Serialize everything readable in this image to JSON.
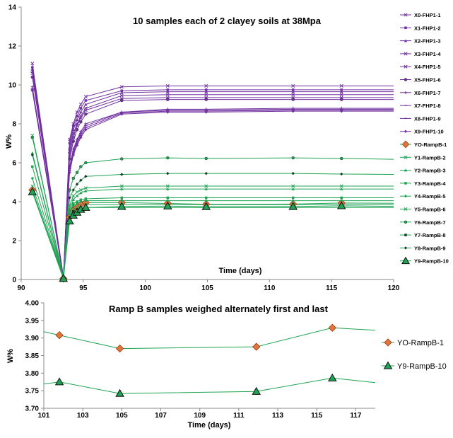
{
  "colors": {
    "purple": "#7030a0",
    "green": "#1fa354",
    "orange": "#e2753b",
    "axis": "#888888"
  },
  "chart_data": [
    {
      "type": "line",
      "title": "10 samples each of 2 clayey soils at 38Mpa",
      "xlabel": "Time (days)",
      "ylabel": "W%",
      "xlim": [
        90,
        120
      ],
      "ylim": [
        0,
        14
      ],
      "xticks": [
        90,
        95,
        100,
        105,
        110,
        115,
        120
      ],
      "yticks": [
        0,
        2,
        4,
        6,
        8,
        10,
        12,
        14
      ],
      "legend_position": "right",
      "x": [
        90.9,
        93.4,
        93.9,
        94.2,
        94.5,
        94.8,
        95.2,
        98.1,
        101.8,
        104.9,
        111.9,
        115.8,
        120
      ],
      "series": [
        {
          "name": "X0-FHP1-1",
          "marker": "x",
          "color": "#7030a0",
          "values": [
            11.1,
            0.1,
            7.2,
            8.0,
            8.6,
            9.0,
            9.4,
            9.9,
            9.95,
            9.95,
            9.95,
            9.95,
            9.95
          ]
        },
        {
          "name": "X1-FHP1-2",
          "marker": "square",
          "color": "#7030a0",
          "values": [
            10.9,
            0.1,
            7.0,
            7.9,
            8.4,
            8.8,
            9.2,
            9.7,
            9.75,
            9.75,
            9.75,
            9.75,
            9.75
          ]
        },
        {
          "name": "X2-FHP1-3",
          "marker": "triangle",
          "color": "#7030a0",
          "values": [
            10.8,
            0.1,
            6.8,
            7.7,
            8.2,
            8.6,
            9.0,
            9.6,
            9.65,
            9.65,
            9.65,
            9.65,
            9.65
          ]
        },
        {
          "name": "X3-FHP1-4",
          "marker": "x",
          "color": "#7030a0",
          "values": [
            10.7,
            0.1,
            6.6,
            7.5,
            8.0,
            8.4,
            8.8,
            9.45,
            9.5,
            9.5,
            9.5,
            9.5,
            9.5
          ]
        },
        {
          "name": "X4-FHP1-5",
          "marker": "x",
          "color": "#7030a0",
          "values": [
            10.6,
            0.1,
            6.4,
            7.3,
            7.9,
            8.3,
            8.7,
            9.3,
            9.35,
            9.35,
            9.35,
            9.35,
            9.35
          ]
        },
        {
          "name": "X5-FHP1-6",
          "marker": "circle",
          "color": "#7030a0",
          "values": [
            10.4,
            0.1,
            6.2,
            7.1,
            7.7,
            8.1,
            8.5,
            9.2,
            9.25,
            9.25,
            9.25,
            9.25,
            9.25
          ]
        },
        {
          "name": "X6-FHP1-7",
          "marker": "plus",
          "color": "#7030a0",
          "values": [
            9.9,
            0.1,
            5.8,
            6.7,
            7.2,
            7.6,
            8.0,
            8.6,
            8.75,
            8.75,
            8.8,
            8.8,
            8.8
          ]
        },
        {
          "name": "X7-FHP1-8",
          "marker": "dash",
          "color": "#7030a0",
          "values": [
            9.8,
            0.1,
            5.7,
            6.6,
            7.1,
            7.5,
            7.9,
            8.6,
            8.7,
            8.7,
            8.75,
            8.75,
            8.75
          ]
        },
        {
          "name": "X8-FHP1-9",
          "marker": "dash",
          "color": "#7030a0",
          "values": [
            9.75,
            0.1,
            5.6,
            6.5,
            7.0,
            7.4,
            7.8,
            8.55,
            8.65,
            8.65,
            8.7,
            8.7,
            8.7
          ]
        },
        {
          "name": "X9-FHP1-10",
          "marker": "diamond",
          "color": "#7030a0",
          "values": [
            9.7,
            0.1,
            5.5,
            6.4,
            6.9,
            7.3,
            7.7,
            8.5,
            8.6,
            8.6,
            8.65,
            8.65,
            8.65
          ]
        },
        {
          "name": "YO-RampB-1",
          "marker": "diamond-orange",
          "color": "#1fa354",
          "values": [
            4.6,
            0.05,
            3.2,
            3.55,
            3.7,
            3.85,
            3.95,
            3.95,
            3.91,
            3.87,
            3.875,
            3.93,
            3.92
          ]
        },
        {
          "name": "Y1-RampB-2",
          "marker": "x",
          "color": "#1fa354",
          "values": [
            7.4,
            0.1,
            3.8,
            4.3,
            4.5,
            4.6,
            4.7,
            4.8,
            4.8,
            4.8,
            4.8,
            4.8,
            4.8
          ]
        },
        {
          "name": "Y2-RampB-3",
          "marker": "triangle",
          "color": "#1fa354",
          "values": [
            6.5,
            0.1,
            3.6,
            4.1,
            4.3,
            4.45,
            4.55,
            4.65,
            4.65,
            4.65,
            4.65,
            4.65,
            4.65
          ]
        },
        {
          "name": "Y3-RampB-4",
          "marker": "square",
          "color": "#1fa354",
          "values": [
            5.8,
            0.1,
            3.5,
            3.9,
            4.0,
            4.1,
            4.15,
            4.2,
            4.2,
            4.2,
            4.2,
            4.2,
            4.2
          ]
        },
        {
          "name": "Y4-RampB-5",
          "marker": "diamond",
          "color": "#1fa354",
          "values": [
            5.2,
            0.1,
            3.4,
            3.8,
            3.9,
            4.0,
            4.05,
            4.05,
            4.05,
            4.05,
            4.05,
            4.05,
            4.05
          ]
        },
        {
          "name": "Y5-RampB-6",
          "marker": "x",
          "color": "#1fa354",
          "values": [
            4.8,
            0.1,
            3.3,
            3.6,
            3.7,
            3.8,
            3.85,
            3.85,
            3.85,
            3.85,
            3.85,
            3.85,
            3.85
          ]
        },
        {
          "name": "Y6-RampB-7",
          "marker": "circle",
          "color": "#1fa354",
          "values": [
            7.3,
            0.1,
            4.6,
            5.2,
            5.5,
            5.8,
            6.0,
            6.2,
            6.25,
            6.22,
            6.25,
            6.22,
            6.18
          ]
        },
        {
          "name": "Y7-RampB-8",
          "marker": "square-dark",
          "color": "#1fa354",
          "values": [
            4.5,
            0.1,
            3.2,
            3.5,
            3.6,
            3.65,
            3.7,
            3.7,
            3.7,
            3.7,
            3.7,
            3.7,
            3.7
          ]
        },
        {
          "name": "Y8-RampB-9",
          "marker": "diamond-dark",
          "color": "#1fa354",
          "values": [
            6.4,
            0.1,
            4.2,
            4.6,
            4.9,
            5.1,
            5.3,
            5.4,
            5.45,
            5.45,
            5.45,
            5.42,
            5.4
          ]
        },
        {
          "name": "Y9-RampB-10",
          "marker": "triangle-big",
          "color": "#1fa354",
          "values": [
            4.5,
            0.05,
            3.0,
            3.3,
            3.45,
            3.6,
            3.7,
            3.75,
            3.775,
            3.742,
            3.748,
            3.786,
            3.76
          ]
        }
      ]
    },
    {
      "type": "line",
      "title": "Ramp B samples weighed alternately first and last",
      "xlabel": "Time (days)",
      "ylabel": "W%",
      "xlim": [
        101,
        118
      ],
      "ylim": [
        3.7,
        4.0
      ],
      "xticks": [
        101,
        103,
        105,
        107,
        109,
        111,
        113,
        115,
        117
      ],
      "yticks": [
        "3.70",
        "3.75",
        "3.80",
        "3.85",
        "3.90",
        "3.95",
        "4.00"
      ],
      "legend_position": "right",
      "series": [
        {
          "name": "YO-RampB-1",
          "marker": "diamond-orange",
          "color": "#1fa354",
          "x": [
            101,
            101.8,
            104.9,
            111.9,
            115.8,
            118
          ],
          "values": [
            3.918,
            3.908,
            3.87,
            3.875,
            3.929,
            3.922
          ]
        },
        {
          "name": "Y9-RampB-10",
          "marker": "triangle-big",
          "color": "#1fa354",
          "x": [
            101,
            101.8,
            104.9,
            111.9,
            115.8,
            118
          ],
          "values": [
            3.769,
            3.775,
            3.742,
            3.748,
            3.786,
            3.773
          ]
        }
      ]
    }
  ]
}
